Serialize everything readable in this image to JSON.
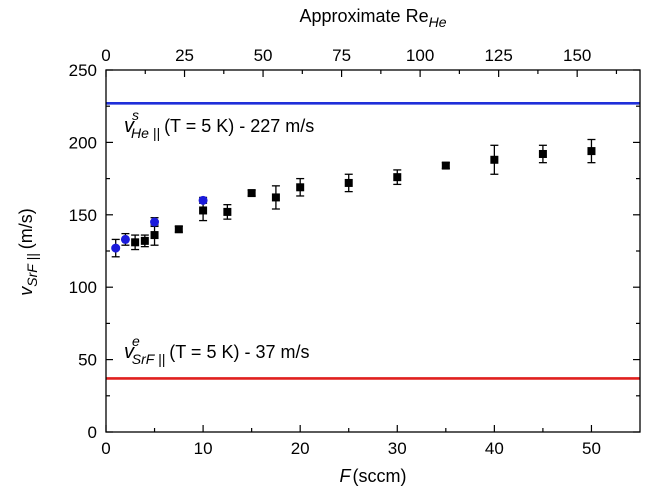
{
  "chart_data": {
    "type": "scatter",
    "xlabel_symbol": "F",
    "xlabel_unit": "(sccm)",
    "ylabel": "v",
    "ylabel_sub": "SrF ||",
    "ylabel_unit": "(m/s)",
    "top_axis_label": "Approximate Re",
    "top_axis_label_sub": "He",
    "xlim": [
      0,
      55
    ],
    "ylim": [
      0,
      250
    ],
    "x_ticks": [
      0,
      10,
      20,
      30,
      40,
      50
    ],
    "y_ticks": [
      0,
      50,
      100,
      150,
      200,
      250
    ],
    "top_ticks": [
      0,
      25,
      50,
      75,
      100,
      125,
      150
    ],
    "top_axis_max": 170,
    "grid": false,
    "series": [
      {
        "marker": "square",
        "color": "#000000",
        "points": [
          {
            "x": 3,
            "y": 131,
            "err": 5
          },
          {
            "x": 4,
            "y": 132,
            "err": 4
          },
          {
            "x": 5,
            "y": 136,
            "err": 7
          },
          {
            "x": 7.5,
            "y": 140,
            "err": 2
          },
          {
            "x": 10,
            "y": 153,
            "err": 7
          },
          {
            "x": 12.5,
            "y": 152,
            "err": 5
          },
          {
            "x": 15,
            "y": 165,
            "err": 2
          },
          {
            "x": 17.5,
            "y": 162,
            "err": 8
          },
          {
            "x": 20,
            "y": 169,
            "err": 6
          },
          {
            "x": 25,
            "y": 172,
            "err": 6
          },
          {
            "x": 30,
            "y": 176,
            "err": 5
          },
          {
            "x": 35,
            "y": 184,
            "err": 2
          },
          {
            "x": 40,
            "y": 188,
            "err": 10
          },
          {
            "x": 45,
            "y": 192,
            "err": 6
          },
          {
            "x": 50,
            "y": 194,
            "err": 8
          }
        ]
      },
      {
        "marker": "circle",
        "color": "#1a1adb",
        "points": [
          {
            "x": 1,
            "y": 127,
            "err": 6
          },
          {
            "x": 2,
            "y": 133,
            "err": 4
          },
          {
            "x": 5,
            "y": 145,
            "err": 3
          },
          {
            "x": 10,
            "y": 160,
            "err": 2
          }
        ]
      }
    ],
    "reference_lines": [
      {
        "y": 227,
        "color": "#1f2fd9",
        "label_symbol": "v",
        "label_sup": "s",
        "label_sub": "He ||",
        "label_text": "(T = 5 K) - 227 m/s"
      },
      {
        "y": 37,
        "color": "#e0201f",
        "label_symbol": "v",
        "label_sup": "e",
        "label_sub": "SrF ||",
        "label_text": "(T = 5 K) - 37 m/s"
      }
    ]
  }
}
